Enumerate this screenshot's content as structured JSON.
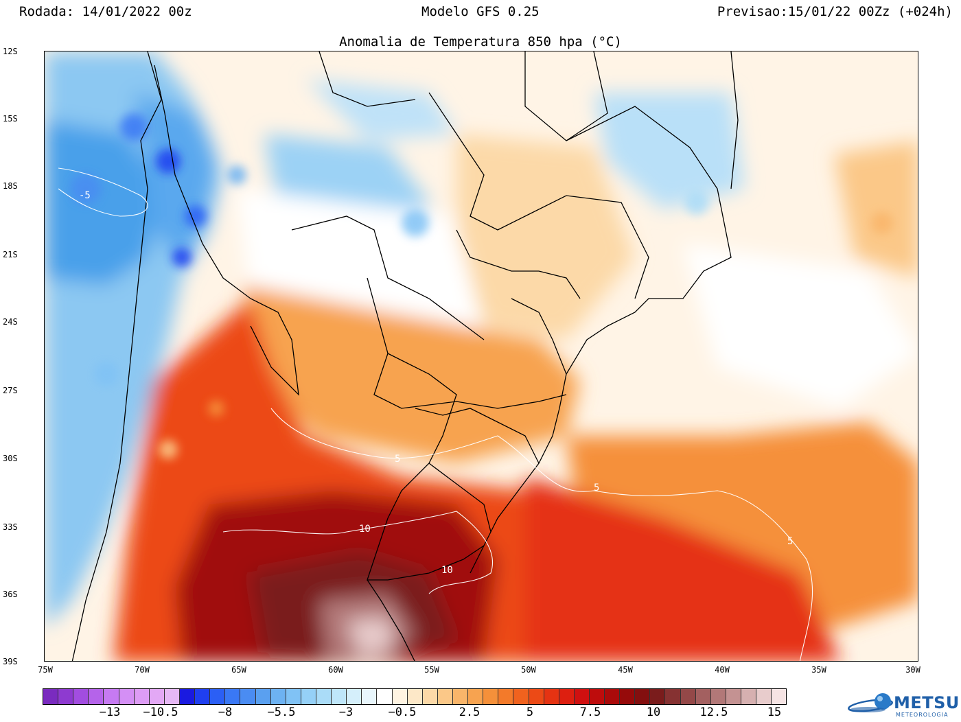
{
  "header": {
    "run": "Rodada: 14/01/2022 00z",
    "model": "Modelo GFS 0.25",
    "forecast": "Previsao:15/01/22 00Zz (+024h)"
  },
  "title": "Anomalia de Temperatura 850 hpa (°C)",
  "axes": {
    "lat_labels": [
      "12S",
      "15S",
      "18S",
      "21S",
      "24S",
      "27S",
      "30S",
      "33S",
      "36S",
      "39S"
    ],
    "lon_labels": [
      "75W",
      "70W",
      "65W",
      "60W",
      "55W",
      "50W",
      "45W",
      "40W",
      "35W",
      "30W"
    ]
  },
  "contours": {
    "labels": [
      "-5",
      "5",
      "5",
      "5",
      "10",
      "10"
    ]
  },
  "colorbar": {
    "tick_labels": [
      "−13",
      "−10.5",
      "−8",
      "−5.5",
      "−3",
      "−0.5",
      "2.5",
      "5",
      "7.5",
      "10",
      "12.5",
      "15"
    ],
    "colors": [
      "#7a2bbf",
      "#8e3ad0",
      "#a24de0",
      "#b563ea",
      "#c67af2",
      "#d48ff5",
      "#dd9cf5",
      "#e3a8f5",
      "#e6b8f5",
      "#1a1ae0",
      "#1f3ff0",
      "#2b5ff5",
      "#3a78f5",
      "#4a8cf2",
      "#5aa0f0",
      "#6db2f2",
      "#80c2f5",
      "#95d0f7",
      "#aadcf8",
      "#bfe6fa",
      "#d5effb",
      "#e8f6fc",
      "#ffffff",
      "#fff4e2",
      "#fde8c8",
      "#fcd9a8",
      "#fbc888",
      "#f9b56a",
      "#f7a350",
      "#f5903a",
      "#f37a2a",
      "#f0621e",
      "#ec4a16",
      "#e53312",
      "#dd1f10",
      "#d01010",
      "#be0c0c",
      "#aa0a0a",
      "#960a0a",
      "#830f0f",
      "#7a1c1c",
      "#863232",
      "#944848",
      "#a36060",
      "#b27878",
      "#c49292",
      "#d6b0b0",
      "#e8cccc",
      "#f6e4e4"
    ]
  },
  "logo": {
    "name": "METSUL",
    "sub": "METEOROLOGIA"
  }
}
